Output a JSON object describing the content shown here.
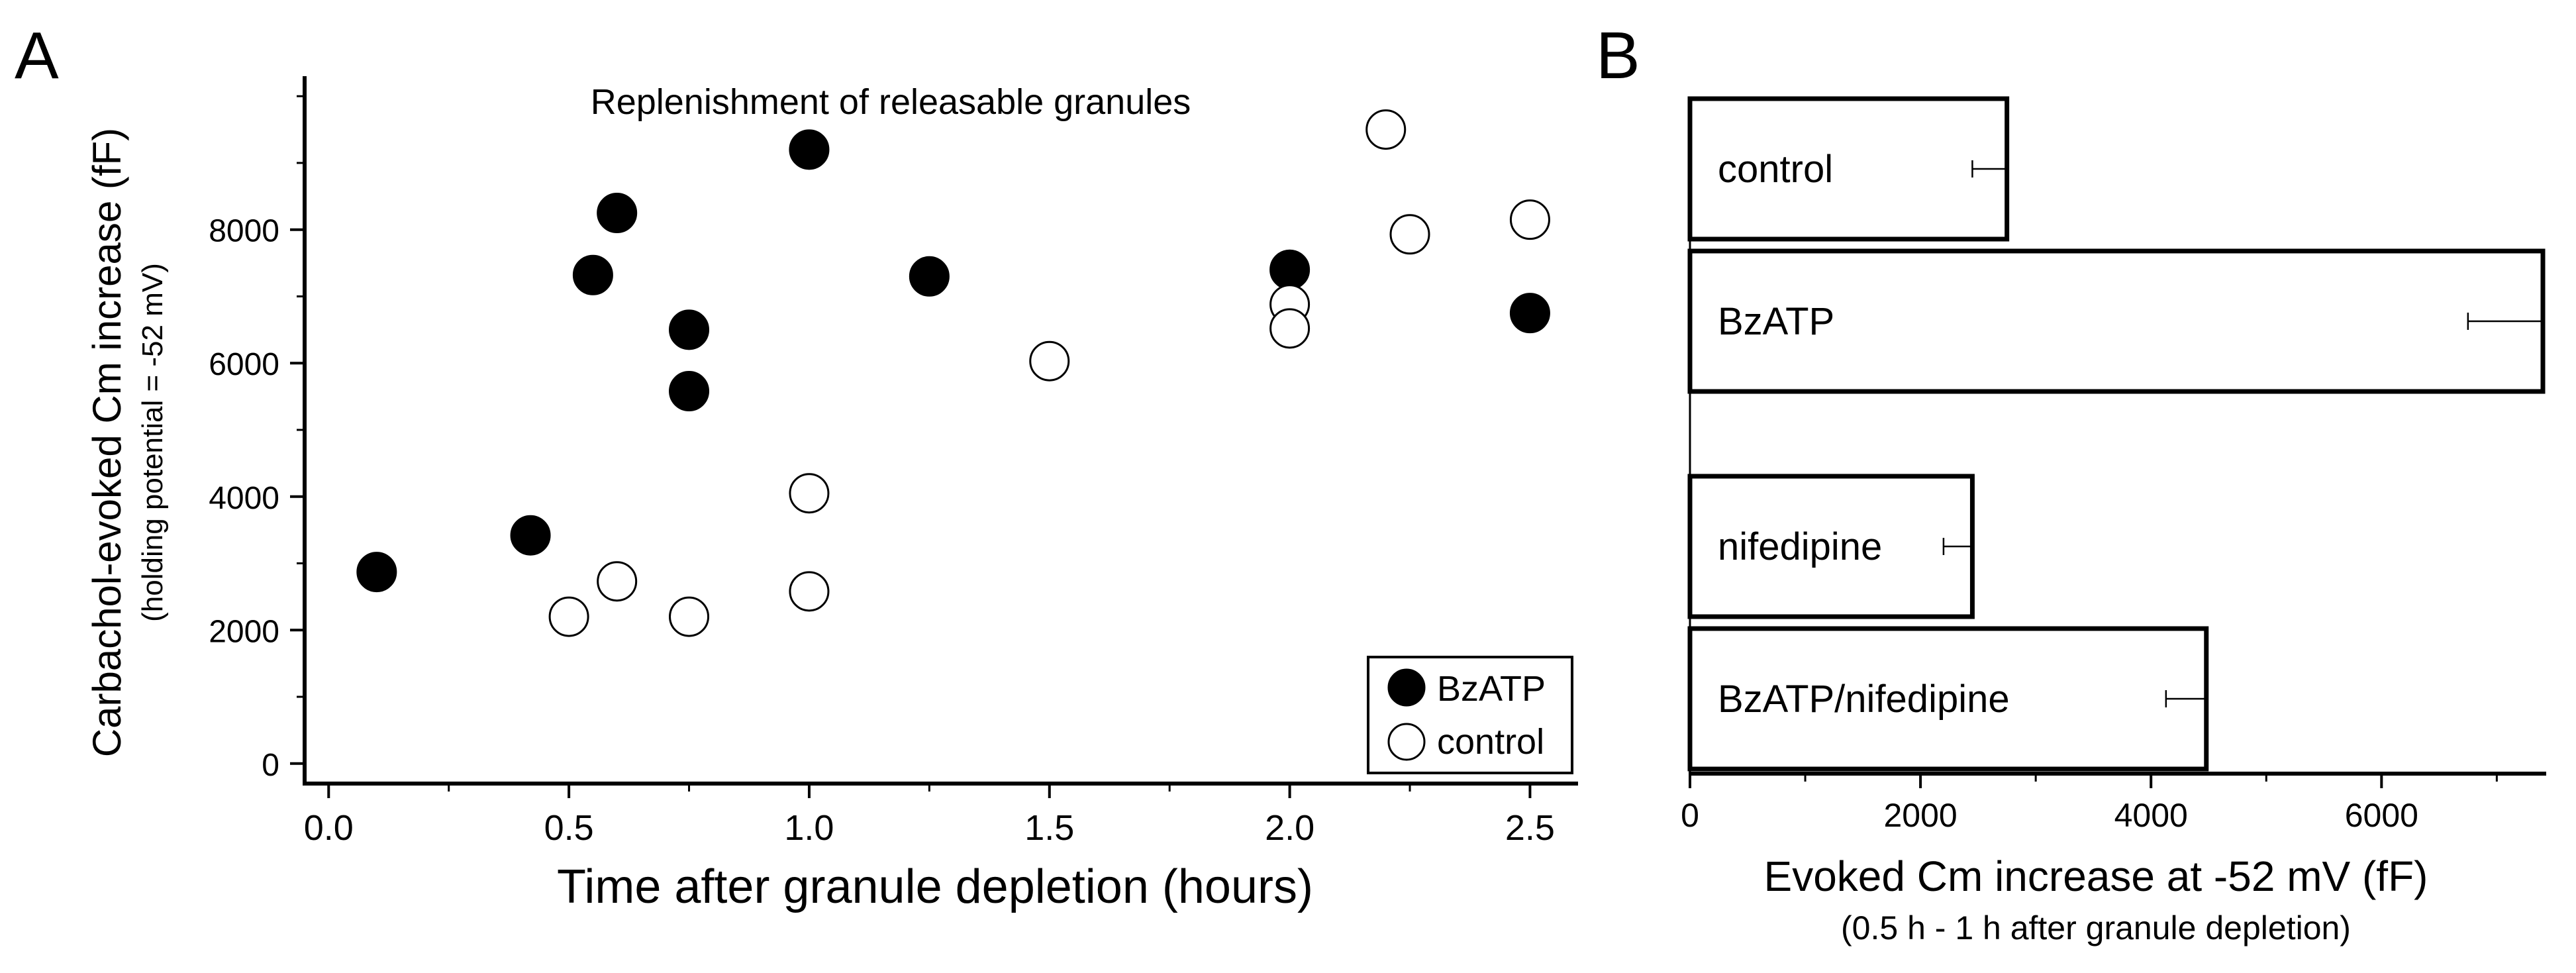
{
  "chart_data": [
    {
      "type": "scatter",
      "panel_label": "A",
      "title": "Replenishment of releasable granules",
      "xlabel": "Time after granule depletion (hours)",
      "ylabel": "Carbachol-evoked Cm increase (fF)",
      "ylabel_sub": "(holding potential = -52 mV)",
      "xlim": [
        -0.05,
        2.6
      ],
      "ylim": [
        -300,
        10300
      ],
      "xticks": [
        0.0,
        0.5,
        1.0,
        1.5,
        2.0,
        2.5
      ],
      "xtick_labels": [
        "0.0",
        "0.5",
        "1.0",
        "1.5",
        "2.0",
        "2.5"
      ],
      "yticks": [
        0,
        2000,
        4000,
        6000,
        8000
      ],
      "ytick_labels": [
        "0",
        "2000",
        "4000",
        "6000",
        "8000"
      ],
      "legend_position": "bottom-right",
      "series": [
        {
          "name": "BzATP",
          "color": "#000000",
          "filled": true,
          "points": [
            [
              0.1,
              2870
            ],
            [
              0.42,
              3420
            ],
            [
              0.55,
              7320
            ],
            [
              0.6,
              8250
            ],
            [
              0.75,
              6500
            ],
            [
              0.75,
              5580
            ],
            [
              1.0,
              9200
            ],
            [
              1.25,
              7300
            ],
            [
              2.0,
              7400
            ],
            [
              2.5,
              6750
            ]
          ]
        },
        {
          "name": "control",
          "color": "#000000",
          "filled": false,
          "points": [
            [
              0.5,
              2200
            ],
            [
              0.6,
              2730
            ],
            [
              0.75,
              2200
            ],
            [
              1.0,
              2580
            ],
            [
              1.0,
              4050
            ],
            [
              1.5,
              6030
            ],
            [
              2.0,
              6880
            ],
            [
              2.0,
              6520
            ],
            [
              2.2,
              9500
            ],
            [
              2.25,
              7930
            ],
            [
              2.5,
              8150
            ]
          ]
        }
      ]
    },
    {
      "type": "bar",
      "orientation": "horizontal",
      "panel_label": "B",
      "xlabel": "Evoked Cm increase at -52 mV (fF)",
      "xlabel_sub": "(0.5 h - 1 h after granule depletion)",
      "xlim": [
        0,
        7400
      ],
      "xticks": [
        0,
        2000,
        4000,
        6000
      ],
      "xtick_labels": [
        "0",
        "2000",
        "4000",
        "6000"
      ],
      "categories": [
        "control",
        "BzATP",
        "nifedipine",
        "BzATP/nifedipine"
      ],
      "values": [
        2750,
        7400,
        2450,
        4480
      ],
      "errors": [
        300,
        650,
        250,
        350
      ]
    }
  ]
}
